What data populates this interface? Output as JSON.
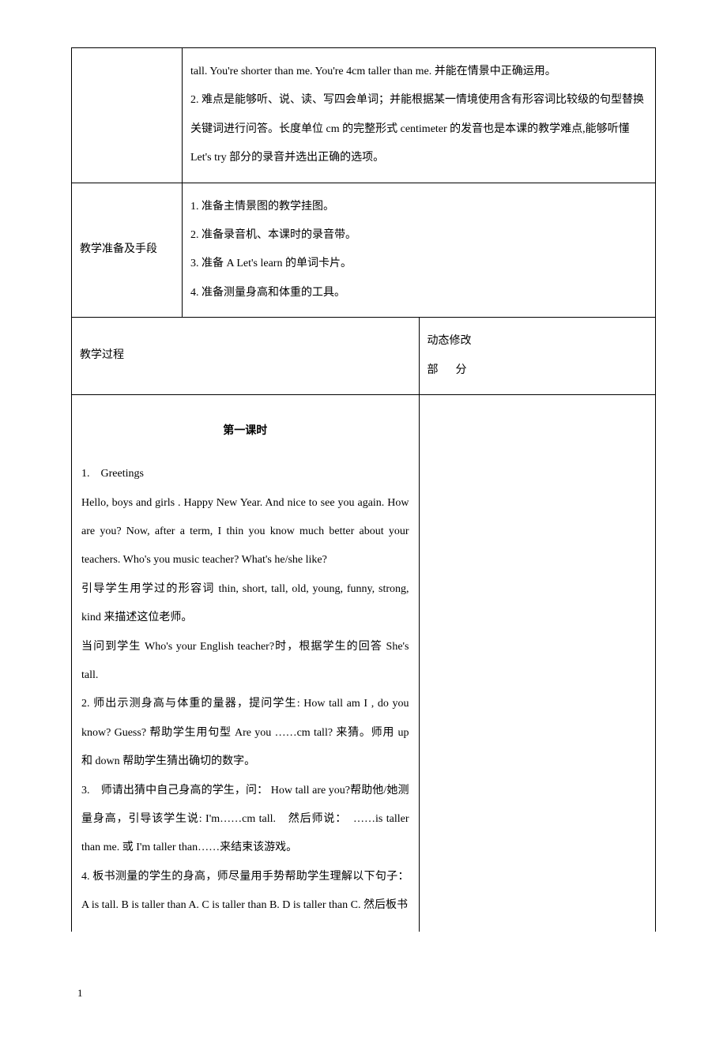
{
  "divider_color": "#000000",
  "font_family": "SimSun",
  "base_font_size": 14,
  "line_height": 2.6,
  "table": {
    "rows": [
      {
        "label": "",
        "content_lines": [
          "tall. You're shorter than me. You're 4cm taller than me. 并能在情景中正确运用。",
          "2. 难点是能够听、说、读、写四会单词；并能根据某一情境使用含有形容词比较级的句型替换关键词进行问答。长度单位 cm 的完整形式 centimeter 的发音也是本课的教学难点,能够听懂 Let's try 部分的录音并选出正确的选项。"
        ]
      },
      {
        "label": "教学准备及手段",
        "content_lines": [
          "1. 准备主情景图的教学挂图。",
          "2. 准备录音机、本课时的录音带。",
          "3. 准备 A Let's learn 的单词卡片。",
          "4. 准备测量身高和体重的工具。"
        ]
      }
    ],
    "process_label": "教学过程",
    "notes_label_line1": "动态修改",
    "notes_label_line2": "部",
    "notes_label_line3": "分"
  },
  "lesson": {
    "title": "第一课时",
    "paragraphs": [
      "1.　Greetings",
      "Hello, boys and girls . Happy New Year. And nice to see you again. How are you? Now, after a term, I thin you know much better about your teachers. Who's you music teacher? What's he/she like?",
      "引导学生用学过的形容词 thin, short, tall, old, young, funny, strong, kind 来描述这位老师。",
      "当问到学生 Who's your English teacher?时，根据学生的回答 She's tall.",
      "2. 师出示测身高与体重的量器，提问学生: How tall am I , do you know? Guess? 帮助学生用句型 Are you ……cm tall? 来猜。师用 up 和 down 帮助学生猜出确切的数字。",
      "3.　师请出猜中自己身高的学生，问： How tall are you?帮助他/她测量身高，引导该学生说: I'm……cm tall.　然后师说：　……is taller than me. 或 I'm taller than……来结束该游戏。",
      "4. 板书测量的学生的身高，师尽量用手势帮助学生理解以下句子：A is tall. B is taller than A. C is taller than B. D is taller than C. 然后板书"
    ]
  },
  "footer_page_num": "1"
}
